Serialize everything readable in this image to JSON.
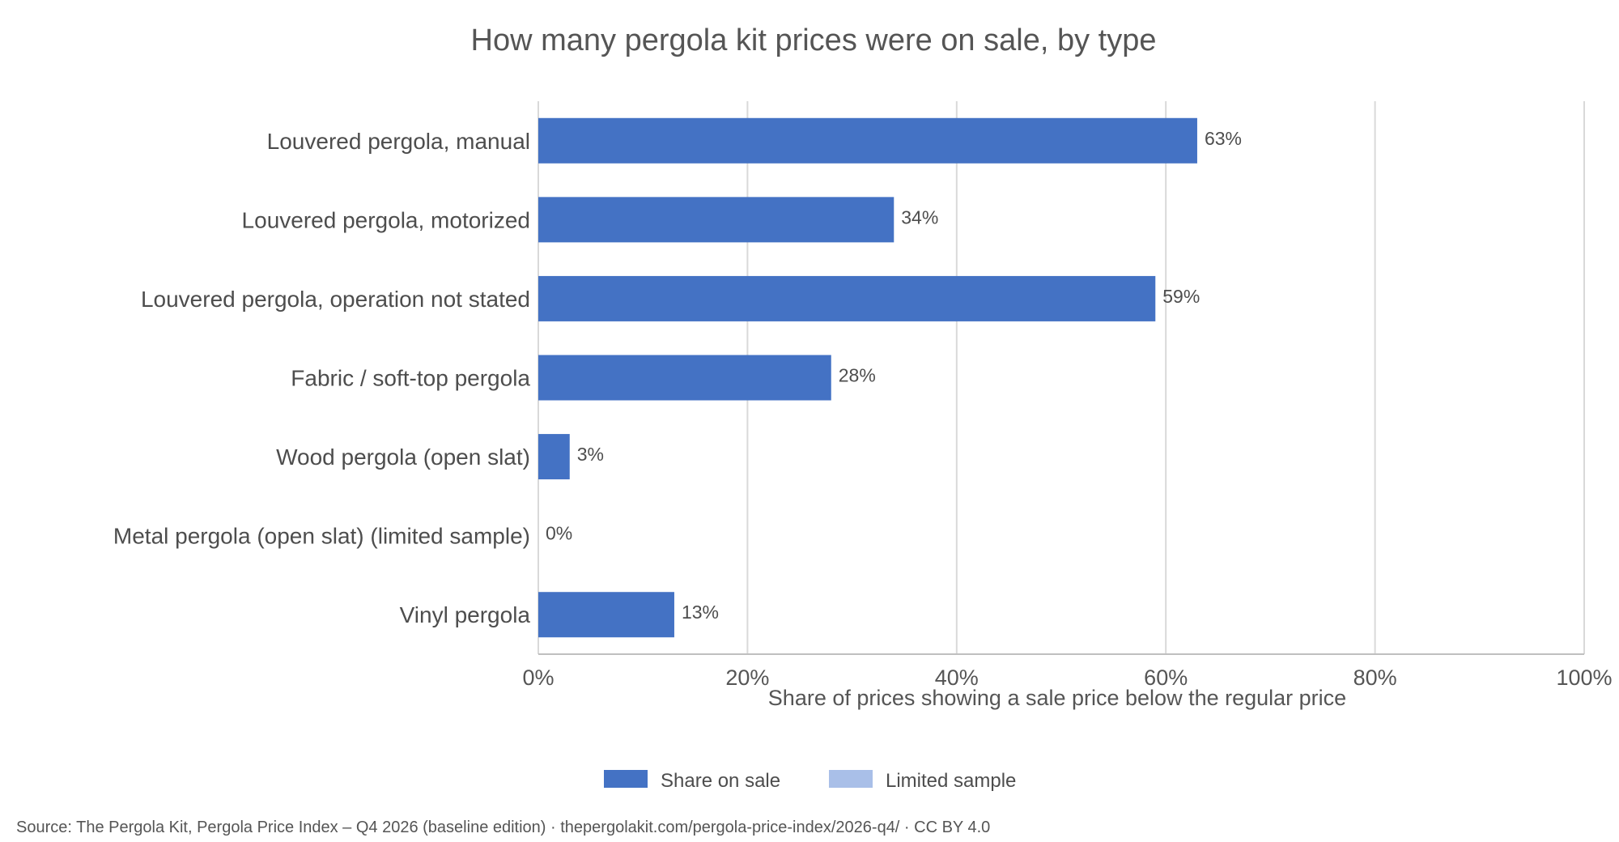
{
  "chart_data": {
    "type": "bar",
    "orientation": "horizontal",
    "title": "How many pergola kit prices were on sale, by type",
    "xlabel": "Share of prices showing a sale price below the regular price",
    "ylabel": "",
    "xlim": [
      0,
      100
    ],
    "x_ticks": [
      0,
      20,
      40,
      60,
      80,
      100
    ],
    "x_tick_labels": [
      "0%",
      "20%",
      "40%",
      "60%",
      "80%",
      "100%"
    ],
    "grid": "vertical",
    "categories": [
      "Louvered pergola, manual",
      "Louvered pergola, motorized",
      "Louvered pergola, operation not stated",
      "Fabric / soft-top pergola",
      "Wood pergola (open slat)",
      "Metal pergola (open slat) (limited sample)",
      "Vinyl pergola"
    ],
    "values": [
      63,
      34,
      59,
      28,
      3,
      0,
      13
    ],
    "data_labels": [
      "63%",
      "34%",
      "59%",
      "28%",
      "3%",
      "0%",
      "13%"
    ],
    "limited_sample": [
      false,
      false,
      false,
      false,
      false,
      true,
      false
    ],
    "legend": {
      "position": "bottom",
      "entries": [
        {
          "label": "Share on sale",
          "color": "#4472c4"
        },
        {
          "label": "Limited sample",
          "color": "#a9bfe8"
        }
      ]
    },
    "colors": {
      "bar": "#4472c4",
      "limited": "#a9bfe8",
      "grid": "#d9d9d9",
      "axis": "#bfbfbf"
    }
  },
  "source": "Source: The Pergola Kit, Pergola Price Index – Q4 2026 (baseline edition) · thepergolakit.com/pergola-price-index/2026-q4/ · CC BY 4.0"
}
